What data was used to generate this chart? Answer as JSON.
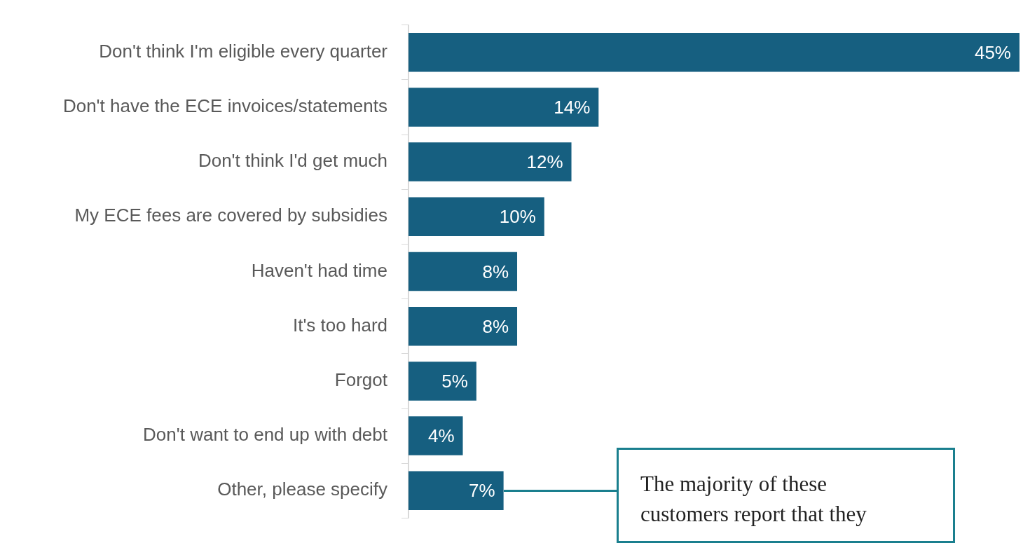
{
  "chart_data": {
    "type": "bar",
    "orientation": "horizontal",
    "categories": [
      "Don't think I'm eligible every quarter",
      "Don't have the ECE invoices/statements",
      "Don't think I'd get much",
      "My ECE fees are covered by subsidies",
      "Haven't had time",
      "It's too hard",
      "Forgot",
      "Don't want to end up with debt",
      "Other, please specify"
    ],
    "values": [
      45,
      14,
      12,
      10,
      8,
      8,
      5,
      4,
      7
    ],
    "value_labels": [
      "45%",
      "14%",
      "12%",
      "10%",
      "8%",
      "8%",
      "5%",
      "4%",
      "7%"
    ],
    "color": "#165f80",
    "grid": false,
    "legend": false,
    "annotations": [
      "The majority of these customers report that they"
    ]
  }
}
